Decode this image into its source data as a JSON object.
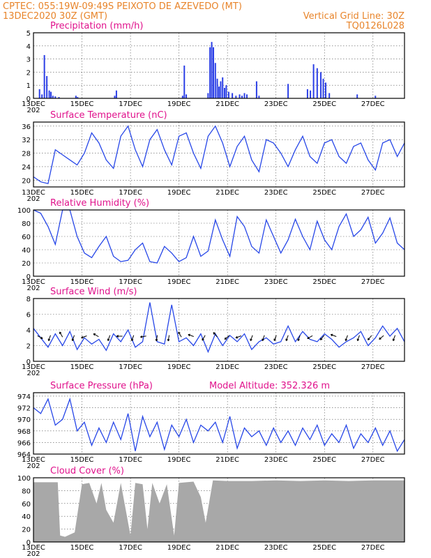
{
  "header": {
    "line1_left": "CPTEC:   055:19W-09:49S   PEIXOTO DE AZEVEDO (MT)",
    "line2_left": "13DEC2020 30Z (GMT)",
    "line2_right": "Vertical Grid Line: 30Z",
    "line3_right": "TQ0126L028"
  },
  "x_axis": {
    "labels": [
      "13DEC",
      "15DEC",
      "17DEC",
      "19DEC",
      "21DEC",
      "23DEC",
      "25DEC",
      "27DEC"
    ],
    "label_days": [
      0,
      2,
      4,
      6,
      8,
      10,
      12,
      14
    ],
    "range_days": [
      0,
      15.3
    ],
    "year_fragment": "202"
  },
  "chart_data": [
    {
      "type": "bar",
      "title": "Precipitation (mm/h)",
      "ylim": [
        0,
        5
      ],
      "yticks": [
        0,
        1,
        2,
        3,
        4,
        5
      ],
      "x_days": [
        0.25,
        0.35,
        0.45,
        0.55,
        0.65,
        0.72,
        0.8,
        0.9,
        1.05,
        1.75,
        1.82,
        3.35,
        3.42,
        6.15,
        6.22,
        6.3,
        7.2,
        7.28,
        7.35,
        7.42,
        7.5,
        7.58,
        7.65,
        7.72,
        7.8,
        7.88,
        7.95,
        8.05,
        8.2,
        8.35,
        8.5,
        8.6,
        8.7,
        8.8,
        9.2,
        9.3,
        10.5,
        11.3,
        11.42,
        11.55,
        11.7,
        11.85,
        11.95,
        12.05,
        12.2,
        13.35,
        14.1
      ],
      "values": [
        0.7,
        0.3,
        3.3,
        1.7,
        0.6,
        0.5,
        0.2,
        0.15,
        0.1,
        0.2,
        0.1,
        0.2,
        0.6,
        0.2,
        2.5,
        0.3,
        0.4,
        3.9,
        4.3,
        3.9,
        2.7,
        1.5,
        0.9,
        1.3,
        1.6,
        0.8,
        1.0,
        0.5,
        0.4,
        0.2,
        0.3,
        0.2,
        0.4,
        0.3,
        1.3,
        0.2,
        1.1,
        0.7,
        0.6,
        2.6,
        2.3,
        2.0,
        1.5,
        1.2,
        0.4,
        0.3,
        0.2
      ]
    },
    {
      "type": "line",
      "title": "Surface Temperature (nC)",
      "ylim": [
        18,
        37.2
      ],
      "yticks": [
        20,
        24,
        28,
        32,
        36
      ],
      "x_days": [
        0,
        0.3,
        0.6,
        0.9,
        1.2,
        1.5,
        1.8,
        2.1,
        2.4,
        2.7,
        3,
        3.3,
        3.6,
        3.9,
        4.2,
        4.5,
        4.8,
        5.1,
        5.4,
        5.7,
        6,
        6.3,
        6.6,
        6.9,
        7.2,
        7.5,
        7.8,
        8.1,
        8.4,
        8.7,
        9,
        9.3,
        9.6,
        9.9,
        10.2,
        10.5,
        10.8,
        11.1,
        11.4,
        11.7,
        12,
        12.3,
        12.6,
        12.9,
        13.2,
        13.5,
        13.8,
        14.1,
        14.4,
        14.7,
        15,
        15.3
      ],
      "values": [
        21,
        19.5,
        19,
        29,
        27.5,
        26,
        24.5,
        28,
        34,
        31,
        26,
        23.5,
        33,
        36,
        29,
        24,
        32,
        35,
        29,
        24.5,
        33,
        34,
        28,
        23.5,
        33,
        36,
        31,
        24,
        30,
        33,
        26,
        22.5,
        32,
        31,
        28,
        24,
        29,
        33,
        27,
        25,
        31,
        32,
        27,
        25,
        30,
        31,
        26,
        23,
        31,
        32,
        27,
        31
      ]
    },
    {
      "type": "line",
      "title": "Relative Humidity (%)",
      "ylim": [
        0,
        100
      ],
      "yticks": [
        0,
        20,
        40,
        60,
        80,
        100
      ],
      "x_days": [
        0,
        0.3,
        0.6,
        0.9,
        1.2,
        1.5,
        1.8,
        2.1,
        2.4,
        2.7,
        3,
        3.3,
        3.6,
        3.9,
        4.2,
        4.5,
        4.8,
        5.1,
        5.4,
        5.7,
        6,
        6.3,
        6.6,
        6.9,
        7.2,
        7.5,
        7.8,
        8.1,
        8.4,
        8.7,
        9,
        9.3,
        9.6,
        9.9,
        10.2,
        10.5,
        10.8,
        11.1,
        11.4,
        11.7,
        12,
        12.3,
        12.6,
        12.9,
        13.2,
        13.5,
        13.8,
        14.1,
        14.4,
        14.7,
        15,
        15.3
      ],
      "values": [
        100,
        95,
        75,
        48,
        100,
        100,
        60,
        35,
        28,
        45,
        60,
        30,
        22,
        24,
        40,
        50,
        22,
        20,
        45,
        35,
        22,
        28,
        60,
        30,
        38,
        85,
        55,
        30,
        90,
        75,
        45,
        35,
        85,
        60,
        35,
        55,
        86,
        60,
        40,
        83,
        55,
        40,
        75,
        94,
        60,
        70,
        89,
        50,
        65,
        88,
        50,
        40
      ]
    },
    {
      "type": "line",
      "title": "Surface Wind (m/s)",
      "ylim": [
        0,
        8
      ],
      "yticks": [
        0,
        2,
        4,
        6,
        8
      ],
      "x_days": [
        0,
        0.3,
        0.6,
        0.9,
        1.2,
        1.5,
        1.8,
        2.1,
        2.4,
        2.7,
        3,
        3.3,
        3.6,
        3.9,
        4.2,
        4.5,
        4.8,
        5.1,
        5.4,
        5.7,
        6,
        6.3,
        6.6,
        6.9,
        7.2,
        7.5,
        7.8,
        8.1,
        8.4,
        8.7,
        9,
        9.3,
        9.6,
        9.9,
        10.2,
        10.5,
        10.8,
        11.1,
        11.4,
        11.7,
        12,
        12.3,
        12.6,
        12.9,
        13.2,
        13.5,
        13.8,
        14.1,
        14.4,
        14.7,
        15,
        15.3
      ],
      "values": [
        4.2,
        3,
        1.8,
        3.5,
        2,
        3.8,
        1.5,
        3,
        2.2,
        2.8,
        1.4,
        3.5,
        2.5,
        4,
        1.8,
        2.5,
        7.5,
        2.5,
        2.2,
        7.2,
        2.5,
        3,
        2,
        3.5,
        1.2,
        3.5,
        2,
        3.3,
        2.5,
        3.5,
        1.5,
        2.5,
        3,
        2.2,
        2.5,
        4.5,
        2.5,
        3.8,
        2.8,
        2.5,
        3.5,
        2.8,
        1.8,
        2.5,
        3,
        3.8,
        2,
        3,
        4.5,
        3.2,
        4.2,
        2.5
      ]
    },
    {
      "type": "line",
      "title": "Surface Pressure (hPa)",
      "annotation": "Model Altitude: 352.326 m",
      "ylim": [
        964,
        974.6
      ],
      "yticks": [
        964,
        966,
        968,
        970,
        972,
        974
      ],
      "x_days": [
        0,
        0.3,
        0.6,
        0.9,
        1.2,
        1.5,
        1.8,
        2.1,
        2.4,
        2.7,
        3,
        3.3,
        3.6,
        3.9,
        4.2,
        4.5,
        4.8,
        5.1,
        5.4,
        5.7,
        6,
        6.3,
        6.6,
        6.9,
        7.2,
        7.5,
        7.8,
        8.1,
        8.4,
        8.7,
        9,
        9.3,
        9.6,
        9.9,
        10.2,
        10.5,
        10.8,
        11.1,
        11.4,
        11.7,
        12,
        12.3,
        12.6,
        12.9,
        13.2,
        13.5,
        13.8,
        14.1,
        14.4,
        14.7,
        15,
        15.3
      ],
      "values": [
        972,
        971,
        973.5,
        969,
        970,
        973.5,
        968,
        969.5,
        965.5,
        968.5,
        966,
        969.5,
        966.5,
        971,
        964.5,
        970.5,
        967,
        969.5,
        964.8,
        969,
        967,
        970,
        966,
        969,
        968,
        969.5,
        966,
        970.5,
        965,
        968.5,
        967,
        968,
        965.5,
        968.5,
        966,
        968,
        965.5,
        968.5,
        966.5,
        969,
        965.5,
        967.5,
        966,
        969,
        965,
        967.5,
        966,
        968.5,
        965.5,
        968,
        964.5,
        966.5
      ]
    },
    {
      "type": "area",
      "title": "Cloud Cover (%)",
      "ylim": [
        0,
        100
      ],
      "yticks": [
        0,
        20,
        40,
        60,
        80,
        100
      ],
      "x_days": [
        0,
        0.5,
        1,
        1.1,
        1.3,
        1.7,
        2,
        2.3,
        2.6,
        2.8,
        3,
        3.3,
        3.6,
        4,
        4.2,
        4.5,
        4.7,
        4.9,
        5.2,
        5.5,
        5.8,
        6,
        6.3,
        6.6,
        6.9,
        7.1,
        7.4,
        8,
        9,
        10,
        11,
        12,
        13,
        14,
        15.3
      ],
      "values": [
        93,
        93,
        93,
        10,
        8,
        15,
        90,
        92,
        60,
        92,
        50,
        30,
        92,
        10,
        92,
        90,
        20,
        92,
        60,
        90,
        10,
        92,
        93,
        94,
        70,
        30,
        96,
        95,
        95,
        96,
        95,
        96,
        95,
        96,
        96
      ]
    }
  ],
  "wind_directions_deg": [
    120,
    200,
    330,
    200,
    250,
    300,
    200,
    270,
    200,
    260,
    190,
    190,
    330,
    290,
    210,
    320,
    230,
    250,
    200,
    200,
    200,
    200,
    200,
    240,
    220,
    290,
    200,
    200,
    220,
    230,
    200
  ]
}
